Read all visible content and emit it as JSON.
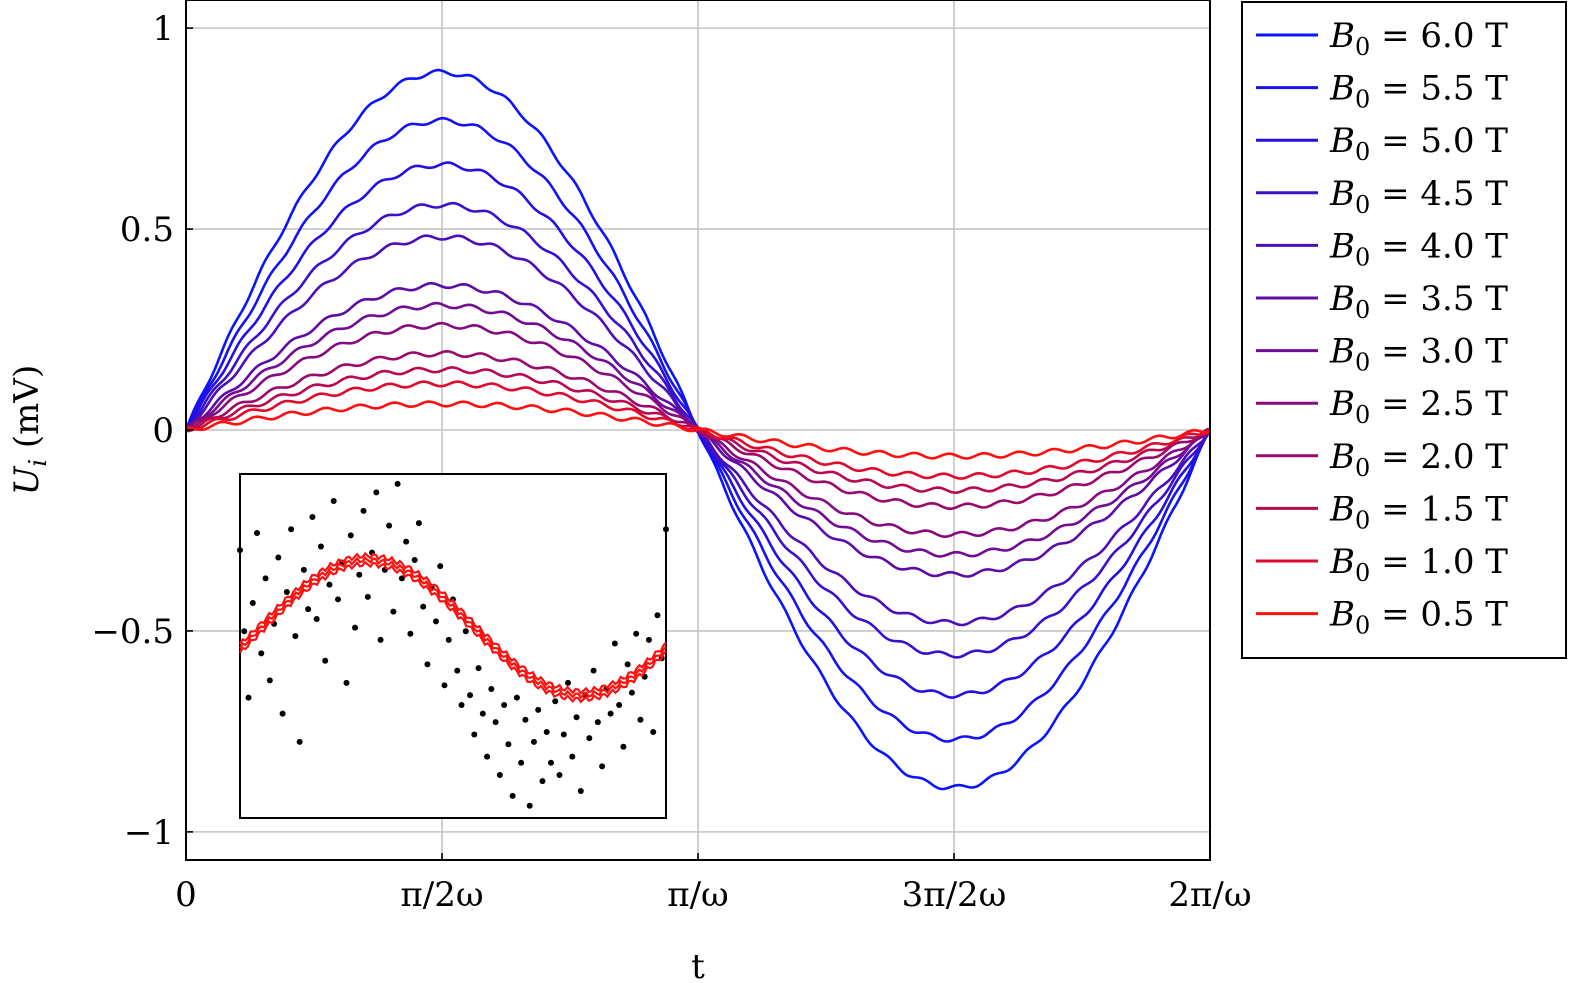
{
  "chart_data": [
    {
      "type": "line",
      "xlabel": "t",
      "ylabel": "U_i (mV)",
      "ylabel_symbol": "U",
      "ylabel_subscript": "i",
      "ylabel_unit": "(mV)",
      "x_range_label": "0 to 2π/ω",
      "xlim": [
        0,
        2
      ],
      "xlim_unit": "π/ω",
      "ylim": [
        -1.07,
        1.07
      ],
      "grid": true,
      "legend_position": "outside-right",
      "x_ticks": [
        {
          "value": 0,
          "label": "0"
        },
        {
          "value": 0.5,
          "label": "π/2ω"
        },
        {
          "value": 1,
          "label": "π/ω"
        },
        {
          "value": 1.5,
          "label": "3π/2ω"
        },
        {
          "value": 2,
          "label": "2π/ω"
        }
      ],
      "y_ticks": [
        {
          "value": 1,
          "label": "1"
        },
        {
          "value": 0.5,
          "label": "0.5"
        },
        {
          "value": 0,
          "label": "0"
        },
        {
          "value": -0.5,
          "label": "−0.5"
        },
        {
          "value": -1,
          "label": "−1"
        }
      ],
      "x": [
        0,
        0.125,
        0.25,
        0.375,
        0.5,
        0.625,
        0.75,
        0.875,
        1,
        1.125,
        1.25,
        1.375,
        1.5,
        1.625,
        1.75,
        1.875,
        2
      ],
      "series": [
        {
          "name": "B_0 = 6.0 T",
          "label_symbol": "B",
          "label_subscript": "0",
          "label_value": " = 6.0 T",
          "color": "#0a14ff",
          "amplitude": 0.89,
          "values": [
            0,
            0.34,
            0.63,
            0.82,
            0.89,
            0.82,
            0.63,
            0.34,
            0,
            -0.34,
            -0.63,
            -0.82,
            -0.89,
            -0.82,
            -0.63,
            -0.34,
            0
          ]
        },
        {
          "name": "B_0 = 5.5 T",
          "label_symbol": "B",
          "label_subscript": "0",
          "label_value": " = 5.5 T",
          "color": "#1612f2",
          "amplitude": 0.77,
          "values": [
            0,
            0.29,
            0.54,
            0.71,
            0.77,
            0.71,
            0.54,
            0.29,
            0,
            -0.29,
            -0.54,
            -0.71,
            -0.77,
            -0.71,
            -0.54,
            -0.29,
            0
          ]
        },
        {
          "name": "B_0 = 5.0 T",
          "label_symbol": "B",
          "label_subscript": "0",
          "label_value": " = 5.0 T",
          "color": "#2410e2",
          "amplitude": 0.66,
          "values": [
            0,
            0.25,
            0.47,
            0.61,
            0.66,
            0.61,
            0.47,
            0.25,
            0,
            -0.25,
            -0.47,
            -0.61,
            -0.66,
            -0.61,
            -0.47,
            -0.25,
            0
          ]
        },
        {
          "name": "B_0 = 4.5 T",
          "label_symbol": "B",
          "label_subscript": "0",
          "label_value": " = 4.5 T",
          "color": "#3a10cc",
          "amplitude": 0.56,
          "values": [
            0,
            0.21,
            0.4,
            0.52,
            0.56,
            0.52,
            0.4,
            0.21,
            0,
            -0.21,
            -0.4,
            -0.52,
            -0.56,
            -0.52,
            -0.4,
            -0.21,
            0
          ]
        },
        {
          "name": "B_0 = 4.0 T",
          "label_symbol": "B",
          "label_subscript": "0",
          "label_value": " = 4.0 T",
          "color": "#4c0eb8",
          "amplitude": 0.48,
          "values": [
            0,
            0.18,
            0.34,
            0.44,
            0.48,
            0.44,
            0.34,
            0.18,
            0,
            -0.18,
            -0.34,
            -0.44,
            -0.48,
            -0.44,
            -0.34,
            -0.18,
            0
          ]
        },
        {
          "name": "B_0 = 3.5 T",
          "label_symbol": "B",
          "label_subscript": "0",
          "label_value": " = 3.5 T",
          "color": "#5e0ca6",
          "amplitude": 0.36,
          "values": [
            0,
            0.14,
            0.25,
            0.33,
            0.36,
            0.33,
            0.25,
            0.14,
            0,
            -0.14,
            -0.25,
            -0.33,
            -0.36,
            -0.33,
            -0.25,
            -0.14,
            0
          ]
        },
        {
          "name": "B_0 = 3.0 T",
          "label_symbol": "B",
          "label_subscript": "0",
          "label_value": " = 3.0 T",
          "color": "#720c94",
          "amplitude": 0.31,
          "values": [
            0,
            0.12,
            0.22,
            0.29,
            0.31,
            0.29,
            0.22,
            0.12,
            0,
            -0.12,
            -0.22,
            -0.29,
            -0.31,
            -0.29,
            -0.22,
            -0.12,
            0
          ]
        },
        {
          "name": "B_0 = 2.5 T",
          "label_symbol": "B",
          "label_subscript": "0",
          "label_value": " = 2.5 T",
          "color": "#860a80",
          "amplitude": 0.26,
          "values": [
            0,
            0.1,
            0.18,
            0.24,
            0.26,
            0.24,
            0.18,
            0.1,
            0,
            -0.1,
            -0.18,
            -0.24,
            -0.26,
            -0.24,
            -0.18,
            -0.1,
            0
          ]
        },
        {
          "name": "B_0 = 2.0 T",
          "label_symbol": "B",
          "label_subscript": "0",
          "label_value": " = 2.0 T",
          "color": "#9a0a6c",
          "amplitude": 0.19,
          "values": [
            0,
            0.07,
            0.13,
            0.18,
            0.19,
            0.18,
            0.13,
            0.07,
            0,
            -0.07,
            -0.13,
            -0.18,
            -0.19,
            -0.18,
            -0.13,
            -0.07,
            0
          ]
        },
        {
          "name": "B_0 = 1.5 T",
          "label_symbol": "B",
          "label_subscript": "0",
          "label_value": " = 1.5 T",
          "color": "#b80a50",
          "amplitude": 0.15,
          "values": [
            0,
            0.06,
            0.11,
            0.14,
            0.15,
            0.14,
            0.11,
            0.06,
            0,
            -0.06,
            -0.11,
            -0.14,
            -0.15,
            -0.14,
            -0.11,
            -0.06,
            0
          ]
        },
        {
          "name": "B_0 = 1.0 T",
          "label_symbol": "B",
          "label_subscript": "0",
          "label_value": " = 1.0 T",
          "color": "#e00a2a",
          "amplitude": 0.115,
          "values": [
            0,
            0.044,
            0.081,
            0.106,
            0.115,
            0.106,
            0.081,
            0.044,
            0,
            -0.044,
            -0.081,
            -0.106,
            -0.115,
            -0.106,
            -0.081,
            -0.044,
            0
          ]
        },
        {
          "name": "B_0 = 0.5 T",
          "label_symbol": "B",
          "label_subscript": "0",
          "label_value": " = 0.5 T",
          "color": "#ff1010",
          "amplitude": 0.065,
          "values": [
            0,
            0.025,
            0.046,
            0.06,
            0.065,
            0.06,
            0.046,
            0.025,
            0,
            -0.025,
            -0.046,
            -0.06,
            -0.065,
            -0.06,
            -0.046,
            -0.025,
            0
          ]
        }
      ]
    },
    {
      "type": "scatter",
      "inset": true,
      "xlim": [
        0,
        1
      ],
      "ylim": [
        -1.4,
        1.4
      ],
      "grid": false,
      "points_color": "#000000",
      "fit_color": "#ff1010",
      "scatter_points": [
        [
          0.0,
          0.78
        ],
        [
          0.01,
          0.12
        ],
        [
          0.02,
          -0.42
        ],
        [
          0.03,
          0.35
        ],
        [
          0.04,
          0.92
        ],
        [
          0.05,
          -0.06
        ],
        [
          0.06,
          0.55
        ],
        [
          0.07,
          -0.28
        ],
        [
          0.08,
          0.18
        ],
        [
          0.09,
          0.72
        ],
        [
          0.1,
          -0.55
        ],
        [
          0.11,
          0.44
        ],
        [
          0.12,
          0.95
        ],
        [
          0.13,
          0.08
        ],
        [
          0.14,
          -0.78
        ],
        [
          0.15,
          0.62
        ],
        [
          0.16,
          0.3
        ],
        [
          0.17,
          1.05
        ],
        [
          0.18,
          0.22
        ],
        [
          0.19,
          0.81
        ],
        [
          0.2,
          -0.12
        ],
        [
          0.21,
          0.5
        ],
        [
          0.22,
          1.18
        ],
        [
          0.23,
          0.38
        ],
        [
          0.24,
          0.68
        ],
        [
          0.25,
          -0.3
        ],
        [
          0.26,
          0.9
        ],
        [
          0.27,
          0.15
        ],
        [
          0.28,
          0.58
        ],
        [
          0.29,
          1.1
        ],
        [
          0.3,
          0.4
        ],
        [
          0.31,
          0.76
        ],
        [
          0.32,
          1.25
        ],
        [
          0.33,
          0.05
        ],
        [
          0.34,
          0.62
        ],
        [
          0.35,
          0.98
        ],
        [
          0.36,
          0.28
        ],
        [
          0.37,
          1.32
        ],
        [
          0.38,
          0.55
        ],
        [
          0.39,
          0.85
        ],
        [
          0.4,
          0.1
        ],
        [
          0.41,
          0.7
        ],
        [
          0.42,
          1.0
        ],
        [
          0.43,
          0.32
        ],
        [
          0.44,
          -0.15
        ],
        [
          0.45,
          0.48
        ],
        [
          0.46,
          0.2
        ],
        [
          0.47,
          0.65
        ],
        [
          0.48,
          -0.32
        ],
        [
          0.49,
          0.05
        ],
        [
          0.5,
          0.38
        ],
        [
          0.51,
          -0.2
        ],
        [
          0.52,
          -0.48
        ],
        [
          0.53,
          0.12
        ],
        [
          0.54,
          -0.4
        ],
        [
          0.55,
          -0.72
        ],
        [
          0.56,
          -0.18
        ],
        [
          0.57,
          -0.55
        ],
        [
          0.58,
          -0.9
        ],
        [
          0.59,
          -0.35
        ],
        [
          0.6,
          -0.62
        ],
        [
          0.61,
          -1.05
        ],
        [
          0.62,
          -0.48
        ],
        [
          0.63,
          -0.8
        ],
        [
          0.64,
          -1.22
        ],
        [
          0.65,
          -0.42
        ],
        [
          0.66,
          -0.95
        ],
        [
          0.67,
          -0.6
        ],
        [
          0.68,
          -1.3
        ],
        [
          0.69,
          -0.78
        ],
        [
          0.7,
          -0.52
        ],
        [
          0.71,
          -1.1
        ],
        [
          0.72,
          -0.7
        ],
        [
          0.73,
          -0.95
        ],
        [
          0.74,
          -0.45
        ],
        [
          0.75,
          -1.05
        ],
        [
          0.76,
          -0.72
        ],
        [
          0.77,
          -0.3
        ],
        [
          0.78,
          -0.9
        ],
        [
          0.79,
          -0.58
        ],
        [
          0.8,
          -1.18
        ],
        [
          0.81,
          -0.4
        ],
        [
          0.82,
          -0.75
        ],
        [
          0.83,
          -0.2
        ],
        [
          0.84,
          -0.62
        ],
        [
          0.85,
          -0.98
        ],
        [
          0.86,
          -0.35
        ],
        [
          0.87,
          -0.55
        ],
        [
          0.88,
          0.02
        ],
        [
          0.89,
          -0.48
        ],
        [
          0.9,
          -0.82
        ],
        [
          0.91,
          -0.15
        ],
        [
          0.92,
          -0.38
        ],
        [
          0.93,
          0.1
        ],
        [
          0.94,
          -0.6
        ],
        [
          0.95,
          -0.25
        ],
        [
          0.96,
          0.05
        ],
        [
          0.97,
          -0.7
        ],
        [
          0.98,
          0.25
        ],
        [
          0.99,
          -0.1
        ],
        [
          1.0,
          0.95
        ]
      ]
    }
  ]
}
